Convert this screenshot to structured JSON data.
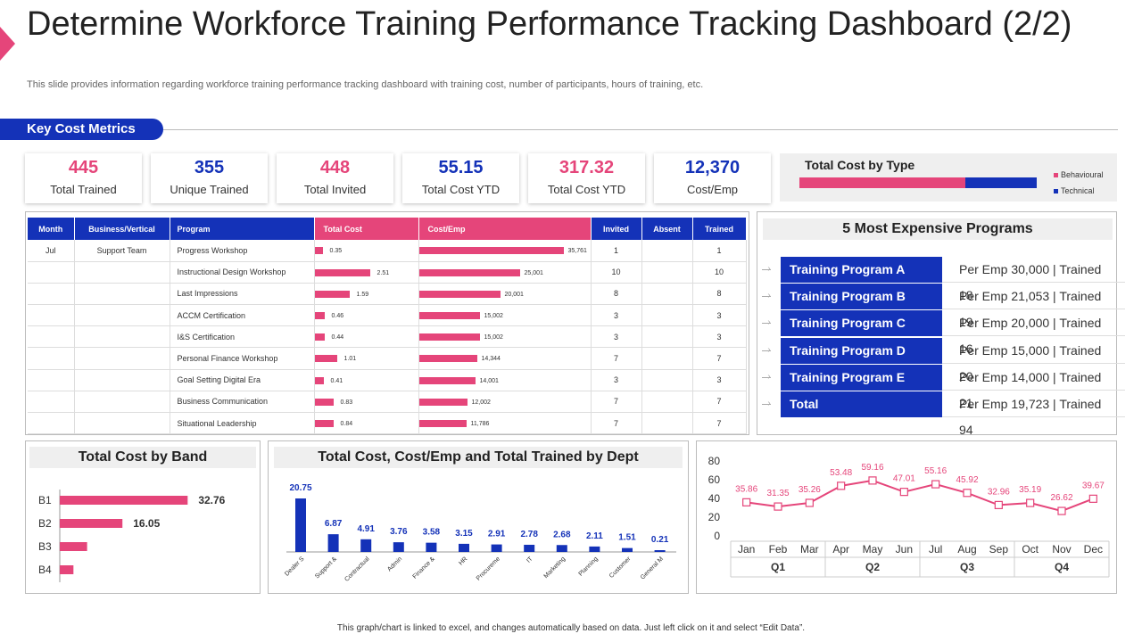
{
  "header": {
    "title": "Determine Workforce Training Performance Tracking Dashboard (2/2)",
    "subtitle": "This slide provides information regarding workforce training performance tracking dashboard with training cost, number of participants, hours of training, etc.",
    "section": "Key Cost Metrics"
  },
  "colors": {
    "pink": "#e5457a",
    "blue": "#1432b8"
  },
  "kpis": [
    {
      "value": "445",
      "label": "Total Trained",
      "color": "pink"
    },
    {
      "value": "355",
      "label": "Unique Trained",
      "color": "blue"
    },
    {
      "value": "448",
      "label": "Total Invited",
      "color": "pink"
    },
    {
      "value": "55.15",
      "label": "Total Cost YTD",
      "color": "blue"
    },
    {
      "value": "317.32",
      "label": "Total Cost YTD",
      "color": "pink"
    },
    {
      "value": "12,370",
      "label": "Cost/Emp",
      "color": "blue"
    }
  ],
  "cost_by_type": {
    "title": "Total Cost by Type",
    "legend": [
      "Behavioural",
      "Technical"
    ],
    "behavioural_share": 0.7
  },
  "table": {
    "headers": [
      "Month",
      "Business/Vertical",
      "Program",
      "Total Cost",
      "Cost/Emp",
      "Invited",
      "Absent",
      "Trained"
    ],
    "rows": [
      {
        "month": "Jul",
        "vertical": "Support Team",
        "program": "Progress Workshop",
        "cost": 0.35,
        "cost_label": "0.35",
        "emp": 35761,
        "emp_label": "35,761",
        "invited": "1",
        "absent": "",
        "trained": "1"
      },
      {
        "month": "",
        "vertical": "",
        "program": "Instructional Design Workshop",
        "cost": 2.51,
        "cost_label": "2.51",
        "emp": 25001,
        "emp_label": "25,001",
        "invited": "10",
        "absent": "",
        "trained": "10"
      },
      {
        "month": "",
        "vertical": "",
        "program": "Last Impressions",
        "cost": 1.59,
        "cost_label": "1.59",
        "emp": 20001,
        "emp_label": "20,001",
        "invited": "8",
        "absent": "",
        "trained": "8"
      },
      {
        "month": "",
        "vertical": "",
        "program": "ACCM Certification",
        "cost": 0.46,
        "cost_label": "0.46",
        "emp": 15002,
        "emp_label": "15,002",
        "invited": "3",
        "absent": "",
        "trained": "3"
      },
      {
        "month": "",
        "vertical": "",
        "program": "I&S Certification",
        "cost": 0.44,
        "cost_label": "0.44",
        "emp": 15002,
        "emp_label": "15,002",
        "invited": "3",
        "absent": "",
        "trained": "3"
      },
      {
        "month": "",
        "vertical": "",
        "program": "Personal Finance Workshop",
        "cost": 1.01,
        "cost_label": "1.01",
        "emp": 14344,
        "emp_label": "14,344",
        "invited": "7",
        "absent": "",
        "trained": "7"
      },
      {
        "month": "",
        "vertical": "",
        "program": "Goal Setting Digital Era",
        "cost": 0.41,
        "cost_label": "0.41",
        "emp": 14001,
        "emp_label": "14,001",
        "invited": "3",
        "absent": "",
        "trained": "3"
      },
      {
        "month": "",
        "vertical": "",
        "program": "Business Communication",
        "cost": 0.83,
        "cost_label": "0.83",
        "emp": 12002,
        "emp_label": "12,002",
        "invited": "7",
        "absent": "",
        "trained": "7"
      },
      {
        "month": "",
        "vertical": "",
        "program": "Situational Leadership",
        "cost": 0.84,
        "cost_label": "0.84",
        "emp": 11786,
        "emp_label": "11,786",
        "invited": "7",
        "absent": "",
        "trained": "7"
      }
    ]
  },
  "expensive": {
    "title": "5 Most Expensive Programs",
    "rows": [
      {
        "name": "Training Program A",
        "detail": "Per Emp 30,000 | Trained  18"
      },
      {
        "name": "Training Program B",
        "detail": "Per Emp 21,053 | Trained  19"
      },
      {
        "name": "Training Program C",
        "detail": "Per Emp 20,000 | Trained  16"
      },
      {
        "name": "Training Program D",
        "detail": "Per Emp 15,000 | Trained  20"
      },
      {
        "name": "Training Program E",
        "detail": "Per Emp 14,000 | Trained  21"
      },
      {
        "name": "Total",
        "detail": "Per Emp 19,723 | Trained  94"
      }
    ]
  },
  "chart_data": [
    {
      "type": "bar",
      "orientation": "horizontal",
      "title": "Total Cost by Band",
      "categories": [
        "B1",
        "B2",
        "B3",
        "B4"
      ],
      "values": [
        32.76,
        16.05,
        7.0,
        3.5
      ],
      "labels": [
        "32.76",
        "16.05",
        "",
        ""
      ]
    },
    {
      "type": "bar",
      "title": "Total Cost, Cost/Emp and Total Trained by Dept",
      "categories": [
        "Dealer S",
        "Support &",
        "Contractual",
        "Admin",
        "Finance &",
        "HR",
        "Procureme",
        "IT",
        "Marketing",
        "Planning",
        "Customer",
        "General M"
      ],
      "values": [
        20.75,
        6.87,
        4.91,
        3.76,
        3.58,
        3.15,
        2.91,
        2.78,
        2.68,
        2.11,
        1.51,
        0.21
      ],
      "labels": [
        "20.75",
        "6.87",
        "4.91",
        "3.76",
        "3.58",
        "3.15",
        "2.91",
        "2.78",
        "2.68",
        "2.11",
        "1.51",
        "0.21"
      ]
    },
    {
      "type": "line",
      "title": "",
      "x": [
        "Jan",
        "Feb",
        "Mar",
        "Apr",
        "May",
        "Jun",
        "Jul",
        "Aug",
        "Sep",
        "Oct",
        "Nov",
        "Dec"
      ],
      "quarters": [
        "Q1",
        "Q2",
        "Q3",
        "Q4"
      ],
      "values": [
        35.86,
        31.35,
        35.26,
        53.48,
        59.16,
        47.01,
        55.16,
        45.92,
        32.96,
        35.19,
        26.62,
        39.67
      ],
      "labels": [
        "35.86",
        "31.35",
        "35.26",
        "53.48",
        "59.16",
        "47.01",
        "55.16",
        "45.92",
        "32.96",
        "35.19",
        "26.62",
        "39.67"
      ],
      "yticks": [
        "0",
        "20",
        "40",
        "60",
        "80"
      ],
      "ylim": [
        0,
        80
      ]
    }
  ],
  "footer": "This graph/chart is linked to excel, and changes automatically based on data. Just left click on it and select “Edit Data”."
}
